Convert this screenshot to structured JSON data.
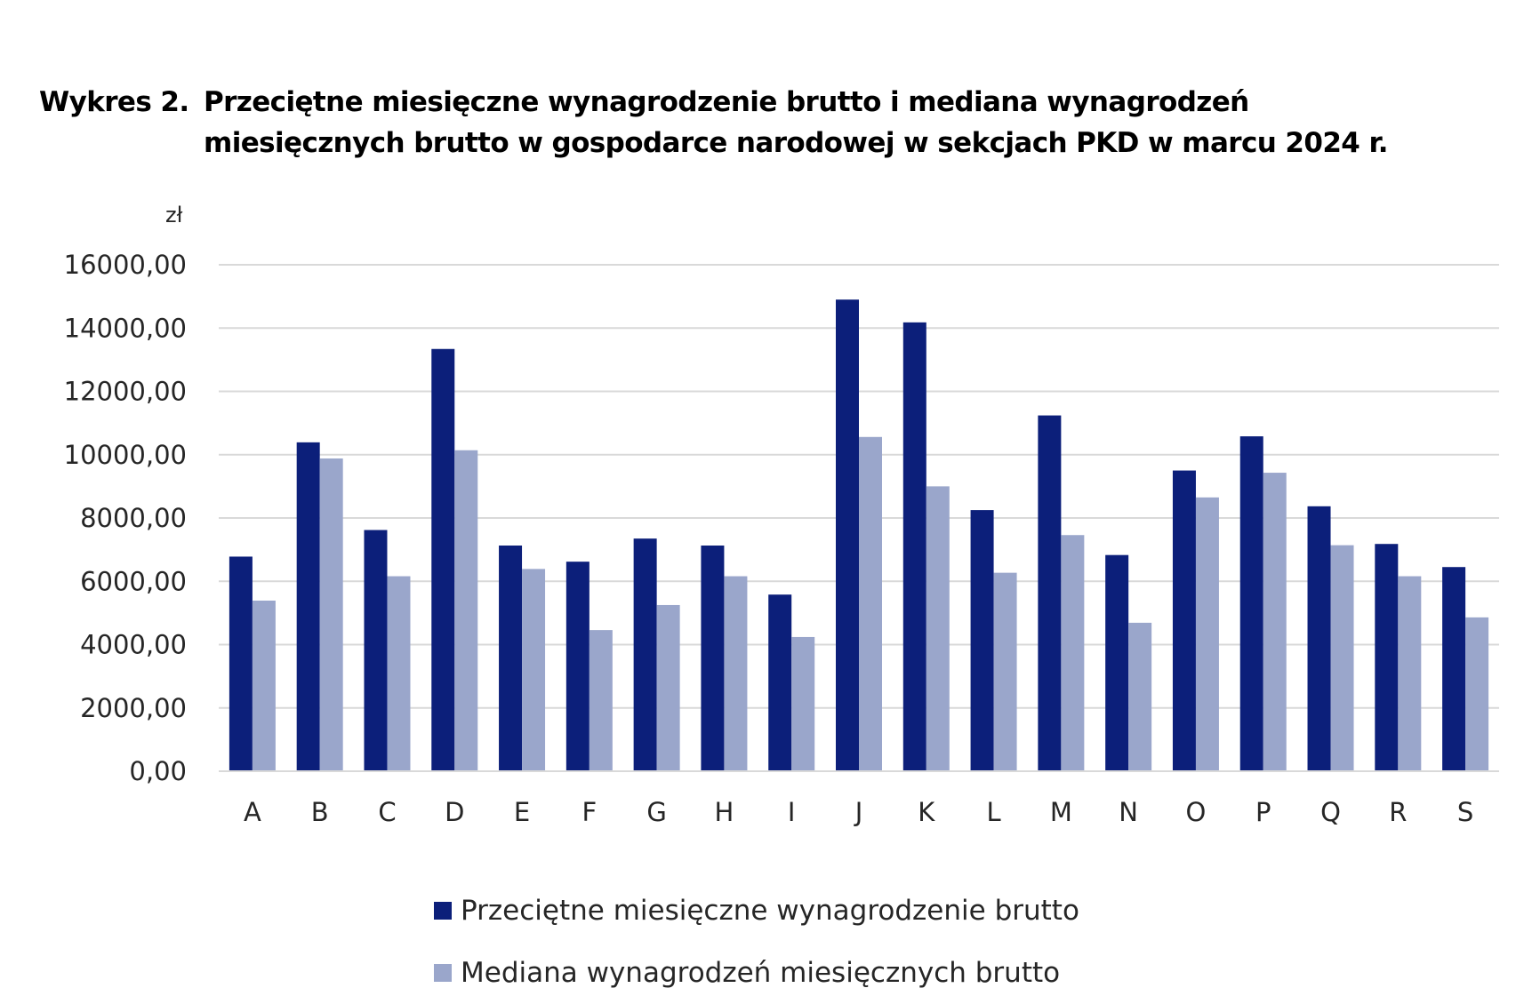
{
  "chart_data": {
    "type": "bar",
    "title_prefix": "Wykres 2.",
    "title_line1": "Przeciętne miesięczne wynagrodzenie brutto i mediana wynagrodzeń",
    "title_line2": "miesięcznych brutto w gospodarce narodowej w sekcjach PKD w marcu 2024 r.",
    "ylabel": "zł",
    "xlabel": "",
    "ylim": [
      0,
      16000
    ],
    "yticks": [
      "0,00",
      "2000,00",
      "4000,00",
      "6000,00",
      "8000,00",
      "10000,00",
      "12000,00",
      "14000,00",
      "16000,00"
    ],
    "ytick_values": [
      0,
      2000,
      4000,
      6000,
      8000,
      10000,
      12000,
      14000,
      16000
    ],
    "grid": true,
    "legend_placement": "bottom",
    "categories": [
      "A",
      "B",
      "C",
      "D",
      "E",
      "F",
      "G",
      "H",
      "I",
      "J",
      "K",
      "L",
      "M",
      "N",
      "O",
      "P",
      "Q",
      "R",
      "S"
    ],
    "series": [
      {
        "name": "Przeciętne miesięczne wynagrodzenie brutto",
        "color": "#0c1f7a",
        "values": [
          6780,
          10390,
          7620,
          13340,
          7130,
          6620,
          7350,
          7130,
          5580,
          14900,
          14180,
          8250,
          11240,
          6830,
          9500,
          10580,
          8370,
          7180,
          6450
        ]
      },
      {
        "name": "Mediana wynagrodzeń miesięcznych brutto",
        "color": "#9aa6cb",
        "values": [
          5390,
          9880,
          6160,
          10140,
          6390,
          4460,
          5250,
          6160,
          4240,
          10560,
          9000,
          6270,
          7460,
          4690,
          8650,
          9430,
          7140,
          6160,
          4860
        ]
      }
    ]
  }
}
